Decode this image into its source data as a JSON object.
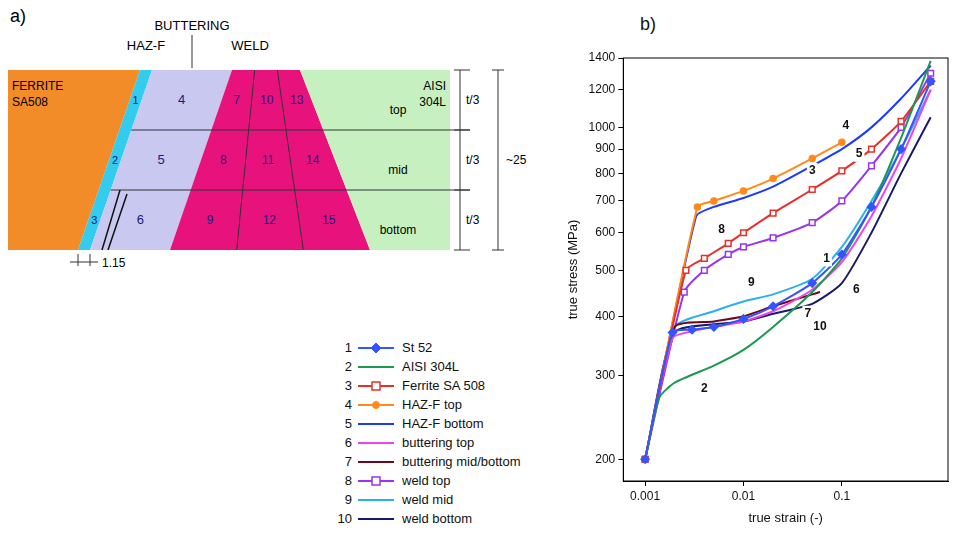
{
  "diagram": {
    "label": "a)",
    "header": {
      "buttering": "BUTTERING",
      "haz": "HAZ-F",
      "weld": "WELD"
    },
    "materials": {
      "left": [
        "FERRITE",
        "SA508"
      ],
      "right": [
        "AISI",
        "304L"
      ]
    },
    "rows": [
      "top",
      "mid",
      "bottom"
    ],
    "zones": {
      "haz": [
        "1",
        "2",
        "3"
      ],
      "buttering": [
        "4",
        "5",
        "6"
      ],
      "weld": [
        [
          "7",
          "10",
          "13"
        ],
        [
          "8",
          "11",
          "14"
        ],
        [
          "9",
          "12",
          "15"
        ]
      ]
    },
    "dimensions": {
      "row": "t/3",
      "total": "~25",
      "bottom": "1.15"
    }
  },
  "chart_data": {
    "type": "line",
    "panel_label": "b)",
    "x_label": "true strain (-)",
    "y_label": "true stress (MPa)",
    "log": true,
    "grid": false,
    "legend": "left",
    "xlim": [
      0.0006,
      1.2
    ],
    "xticks": [
      0.001,
      0.01,
      0.1
    ],
    "ylim": [
      180,
      1400
    ],
    "yticks": [
      200,
      300,
      400,
      500,
      600,
      700,
      800,
      900,
      1000,
      1200,
      1400
    ],
    "series": [
      {
        "label": "1",
        "name": "St 52",
        "color": "#3355ff",
        "marker": "diamond",
        "x": [
          0.001,
          0.0019,
          0.003,
          0.005,
          0.01,
          0.02,
          0.05,
          0.1,
          0.2,
          0.4,
          0.8
        ],
        "values": [
          200,
          370,
          375,
          380,
          395,
          420,
          470,
          540,
          680,
          900,
          1250
        ]
      },
      {
        "label": "2",
        "name": "AISI 304L",
        "color": "#1a9a50",
        "marker": "none",
        "x": [
          0.001,
          0.0014,
          0.002,
          0.005,
          0.01,
          0.02,
          0.05,
          0.1,
          0.2,
          0.4,
          0.8
        ],
        "values": [
          200,
          270,
          290,
          315,
          340,
          380,
          450,
          530,
          680,
          950,
          1380
        ]
      },
      {
        "label": "3",
        "name": "Ferrite SA 508",
        "color": "#e8302a",
        "marker": "square",
        "x": [
          0.001,
          0.0026,
          0.004,
          0.007,
          0.01,
          0.02,
          0.05,
          0.1,
          0.2,
          0.4,
          0.8
        ],
        "values": [
          200,
          500,
          530,
          570,
          600,
          660,
          740,
          810,
          900,
          1030,
          1250
        ]
      },
      {
        "label": "4",
        "name": "HAZ-F top",
        "color": "#ff8a1a",
        "marker": "circle",
        "x": [
          0.001,
          0.0034,
          0.005,
          0.01,
          0.02,
          0.05,
          0.1
        ],
        "values": [
          200,
          680,
          700,
          735,
          780,
          860,
          930
        ]
      },
      {
        "label": "5",
        "name": "HAZ-F bottom",
        "color": "#1a3aff",
        "marker": "none",
        "x": [
          0.001,
          0.0033,
          0.005,
          0.01,
          0.02,
          0.05,
          0.1,
          0.2,
          0.4,
          0.8
        ],
        "values": [
          200,
          650,
          680,
          710,
          750,
          830,
          900,
          1000,
          1150,
          1350
        ]
      },
      {
        "label": "6",
        "name": "buttering top",
        "color": "#ee44ee",
        "marker": "none",
        "x": [
          0.001,
          0.0019,
          0.003,
          0.005,
          0.01,
          0.02,
          0.05,
          0.1,
          0.2,
          0.4,
          0.8
        ],
        "values": [
          200,
          360,
          372,
          380,
          390,
          410,
          455,
          520,
          650,
          860,
          1200
        ]
      },
      {
        "label": "7",
        "name": "buttering mid/bottom",
        "color": "#6a0a1a",
        "marker": "none",
        "x": [
          0.001,
          0.002,
          0.005,
          0.01,
          0.02,
          0.05,
          0.06
        ],
        "values": [
          200,
          380,
          390,
          400,
          420,
          445,
          450
        ]
      },
      {
        "label": "8",
        "name": "weld top",
        "color": "#9933ee",
        "marker": "square",
        "x": [
          0.001,
          0.0025,
          0.004,
          0.007,
          0.01,
          0.02,
          0.05,
          0.1,
          0.2,
          0.4,
          0.8
        ],
        "values": [
          200,
          450,
          500,
          540,
          560,
          585,
          630,
          700,
          830,
          1000,
          1300
        ]
      },
      {
        "label": "9",
        "name": "weld mid",
        "color": "#2ab0ee",
        "marker": "none",
        "x": [
          0.001,
          0.002,
          0.005,
          0.01,
          0.02,
          0.05,
          0.1,
          0.2,
          0.4,
          0.8
        ],
        "values": [
          200,
          380,
          410,
          430,
          445,
          480,
          560,
          700,
          900,
          1200
        ]
      },
      {
        "label": "10",
        "name": "weld bottom",
        "color": "#1a1a6a",
        "marker": "none",
        "x": [
          0.001,
          0.002,
          0.005,
          0.01,
          0.02,
          0.05,
          0.1,
          0.2,
          0.4,
          0.8
        ],
        "values": [
          200,
          370,
          385,
          390,
          405,
          425,
          470,
          600,
          800,
          1050
        ]
      }
    ],
    "annotations": [
      {
        "text": "4",
        "x": 0.11,
        "y": 1010
      },
      {
        "text": "5",
        "x": 0.15,
        "y": 880
      },
      {
        "text": "3",
        "x": 0.05,
        "y": 810
      },
      {
        "text": "8",
        "x": 0.006,
        "y": 610
      },
      {
        "text": "1",
        "x": 0.07,
        "y": 530
      },
      {
        "text": "9",
        "x": 0.012,
        "y": 470
      },
      {
        "text": "7",
        "x": 0.045,
        "y": 405
      },
      {
        "text": "6",
        "x": 0.14,
        "y": 455
      },
      {
        "text": "10",
        "x": 0.06,
        "y": 380
      },
      {
        "text": "2",
        "x": 0.004,
        "y": 282
      }
    ]
  }
}
